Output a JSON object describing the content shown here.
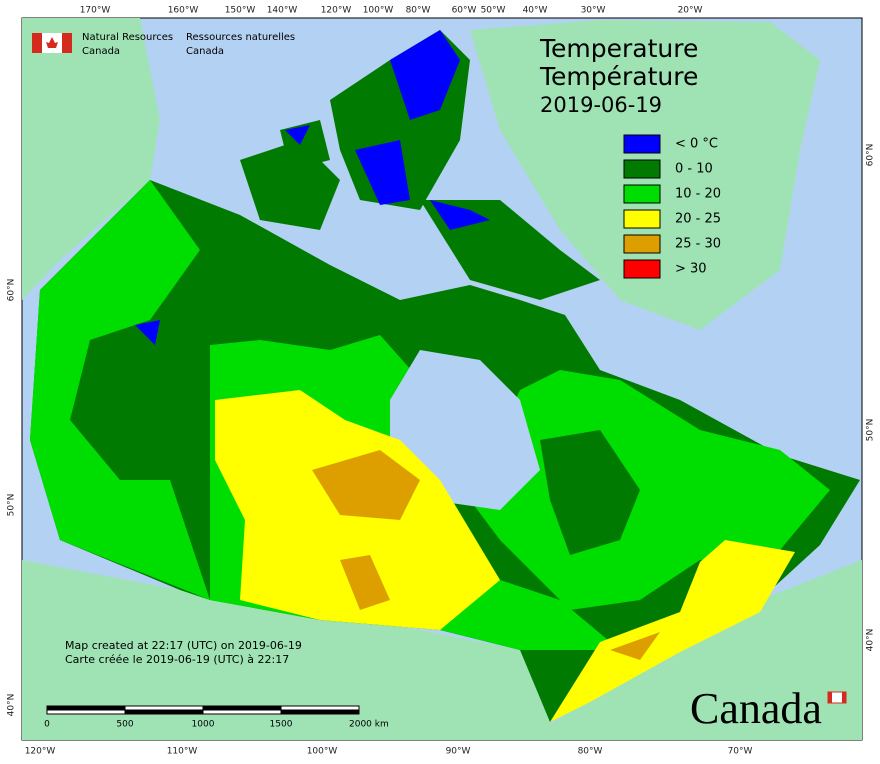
{
  "header": {
    "org_en": [
      "Natural Resources",
      "Canada"
    ],
    "org_fr": [
      "Ressources naturelles",
      "Canada"
    ]
  },
  "title": [
    "Temperature",
    "Température",
    "2019-06-19"
  ],
  "legend": [
    {
      "label": "< 0 °C",
      "color": "#0000ff"
    },
    {
      "label": "0 - 10",
      "color": "#007a00"
    },
    {
      "label": "10 - 20",
      "color": "#00dd00"
    },
    {
      "label": "20 - 25",
      "color": "#ffff00"
    },
    {
      "label": "25 - 30",
      "color": "#dd9f00"
    },
    {
      "label": "> 30",
      "color": "#ff0000"
    }
  ],
  "graticule": {
    "top": [
      "170°W",
      "160°W",
      "150°W",
      "140°W",
      "120°W",
      "100°W",
      "80°W",
      "60°W",
      "50°W",
      "40°W",
      "30°W",
      "20°W"
    ],
    "bottom": [
      "120°W",
      "110°W",
      "100°W",
      "90°W",
      "80°W",
      "70°W"
    ],
    "left": [
      "60°N",
      "50°N",
      "40°N"
    ],
    "right": [
      "60°N",
      "50°N",
      "40°N"
    ]
  },
  "credits": [
    "Map created at 22:17 (UTC) on 2019-06-19",
    "Carte créée le 2019-06-19 (UTC) à 22:17"
  ],
  "scale_bar": [
    "0",
    "500",
    "1000",
    "1500",
    "2000 km"
  ],
  "wordmark": "Canada"
}
